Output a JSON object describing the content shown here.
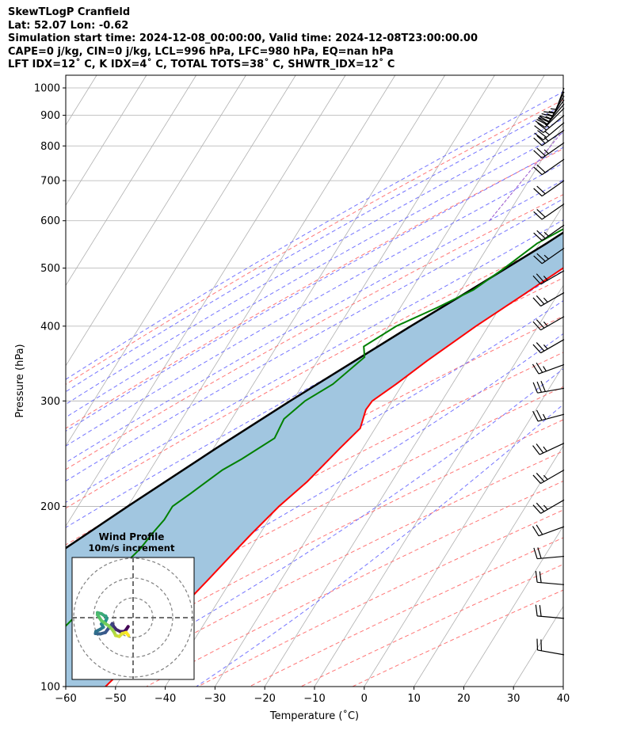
{
  "title_lines": [
    "SkewTLogP Cranfield",
    "Lat: 52.07   Lon: -0.62",
    "Simulation start time: 2024-12-08_00:00:00, Valid time: 2024-12-08T23:00:00.00",
    "CAPE=0 j/kg, CIN=0 j/kg, LCL=996 hPa, LFC=980 hPa, EQ=nan hPa",
    "LFT IDX=12˚ C, K IDX=4˚ C, TOTAL TOTS=38˚ C, SHWTR_IDX=12˚ C"
  ],
  "chart_data": {
    "type": "line",
    "subtype": "skew-t log-p",
    "xlabel": "Temperature (˚C)",
    "ylabel": "Pressure (hPa)",
    "xlim": [
      -60,
      40
    ],
    "ylim": [
      1050,
      100
    ],
    "y_scale": "log",
    "x_ticks": [
      -60,
      -50,
      -40,
      -30,
      -20,
      -10,
      0,
      10,
      20,
      30,
      40
    ],
    "x_tick_labels": [
      "−60",
      "−50",
      "−40",
      "−30",
      "−20",
      "−10",
      "0",
      "10",
      "20",
      "30",
      "40"
    ],
    "y_ticks": [
      1000,
      900,
      800,
      700,
      600,
      500,
      400,
      300,
      200,
      100
    ],
    "y_tick_labels": [
      "1000",
      "900",
      "800",
      "700",
      "600",
      "500",
      "400",
      "300",
      "200",
      "100"
    ],
    "grid": true,
    "colors": {
      "temperature": "#ff0000",
      "dewpoint": "#008000",
      "parcel": "#000000",
      "cape_fill": "#a1c6e0",
      "dry_adiabat": "#ff6666",
      "moist_adiabat": "#6666ff",
      "mixing_ratio": "#9955cc",
      "isotherm": "#b0b0b0",
      "grid": "#b0b0b0"
    },
    "series": [
      {
        "key": "temperature",
        "points": [
          {
            "p": 1010,
            "t": 7.0
          },
          {
            "p": 950,
            "t": 5.0
          },
          {
            "p": 900,
            "t": 3.5
          },
          {
            "p": 850,
            "t": 2.2
          },
          {
            "p": 800,
            "t": 1.2
          },
          {
            "p": 750,
            "t": 1.6
          },
          {
            "p": 700,
            "t": -0.3
          },
          {
            "p": 650,
            "t": -2.5
          },
          {
            "p": 600,
            "t": -5.2
          },
          {
            "p": 550,
            "t": -8.3
          },
          {
            "p": 500,
            "t": -12.2
          },
          {
            "p": 450,
            "t": -17.0
          },
          {
            "p": 400,
            "t": -22.5
          },
          {
            "p": 350,
            "t": -28.0
          },
          {
            "p": 320,
            "t": -31.3
          },
          {
            "p": 300,
            "t": -34.0
          },
          {
            "p": 290,
            "t": -34.2
          },
          {
            "p": 270,
            "t": -33.0
          },
          {
            "p": 250,
            "t": -34.6
          },
          {
            "p": 220,
            "t": -37.0
          },
          {
            "p": 200,
            "t": -39.6
          },
          {
            "p": 180,
            "t": -41.7
          },
          {
            "p": 170,
            "t": -42.7
          },
          {
            "p": 160,
            "t": -43.7
          },
          {
            "p": 150,
            "t": -44.8
          },
          {
            "p": 140,
            "t": -46.0
          },
          {
            "p": 130,
            "t": -46.3
          },
          {
            "p": 120,
            "t": -48.0
          },
          {
            "p": 110,
            "t": -50.0
          },
          {
            "p": 100,
            "t": -52.0
          }
        ]
      },
      {
        "key": "dewpoint",
        "points": [
          {
            "p": 1010,
            "t": 6.2
          },
          {
            "p": 950,
            "t": 4.8
          },
          {
            "p": 900,
            "t": 3.3
          },
          {
            "p": 850,
            "t": 1.7
          },
          {
            "p": 800,
            "t": -0.5
          },
          {
            "p": 760,
            "t": -2.6
          },
          {
            "p": 730,
            "t": -6.5
          },
          {
            "p": 700,
            "t": -13.0
          },
          {
            "p": 650,
            "t": -17.0
          },
          {
            "p": 620,
            "t": -15.2
          },
          {
            "p": 600,
            "t": -15.0
          },
          {
            "p": 550,
            "t": -20.5
          },
          {
            "p": 500,
            "t": -24.0
          },
          {
            "p": 460,
            "t": -27.5
          },
          {
            "p": 430,
            "t": -32.5
          },
          {
            "p": 400,
            "t": -38.5
          },
          {
            "p": 370,
            "t": -42.5
          },
          {
            "p": 355,
            "t": -41.0
          },
          {
            "p": 320,
            "t": -44.0
          },
          {
            "p": 300,
            "t": -47.5
          },
          {
            "p": 280,
            "t": -49.5
          },
          {
            "p": 260,
            "t": -49.0
          },
          {
            "p": 240,
            "t": -53.0
          },
          {
            "p": 230,
            "t": -55.5
          },
          {
            "p": 210,
            "t": -59.0
          },
          {
            "p": 200,
            "t": -61.0
          },
          {
            "p": 190,
            "t": -61.0
          },
          {
            "p": 180,
            "t": -61.7
          },
          {
            "p": 170,
            "t": -62.2
          },
          {
            "p": 160,
            "t": -63.5
          },
          {
            "p": 150,
            "t": -64.5
          },
          {
            "p": 140,
            "t": -65.8
          },
          {
            "p": 130,
            "t": -67.0
          },
          {
            "p": 120,
            "t": -68.5
          },
          {
            "p": 110,
            "t": -70.0
          },
          {
            "p": 100,
            "t": -71.5
          }
        ]
      },
      {
        "key": "parcel",
        "points": [
          {
            "p": 1010,
            "t": 7.0
          },
          {
            "p": 996,
            "t": 6.2
          },
          {
            "p": 950,
            "t": 4.7
          },
          {
            "p": 900,
            "t": 2.8
          },
          {
            "p": 850,
            "t": 0.7
          },
          {
            "p": 800,
            "t": -1.6
          },
          {
            "p": 750,
            "t": -4.2
          },
          {
            "p": 700,
            "t": -7.2
          },
          {
            "p": 650,
            "t": -10.6
          },
          {
            "p": 600,
            "t": -14.4
          },
          {
            "p": 550,
            "t": -18.6
          },
          {
            "p": 500,
            "t": -23.6
          },
          {
            "p": 450,
            "t": -29.2
          },
          {
            "p": 400,
            "t": -35.6
          },
          {
            "p": 350,
            "t": -42.5
          },
          {
            "p": 300,
            "t": -50.5
          },
          {
            "p": 250,
            "t": -59.5
          },
          {
            "p": 200,
            "t": -70.0
          },
          {
            "p": 150,
            "t": -83.0
          },
          {
            "p": 120,
            "t": -93.0
          },
          {
            "p": 100,
            "t": -100.0
          }
        ]
      }
    ],
    "wind_barbs": {
      "units": "knots",
      "levels": [
        {
          "p": 1000,
          "speed_kt": 15,
          "dir_deg": 200
        },
        {
          "p": 985,
          "speed_kt": 15,
          "dir_deg": 205
        },
        {
          "p": 970,
          "speed_kt": 15,
          "dir_deg": 210
        },
        {
          "p": 955,
          "speed_kt": 15,
          "dir_deg": 215
        },
        {
          "p": 940,
          "speed_kt": 20,
          "dir_deg": 220
        },
        {
          "p": 925,
          "speed_kt": 20,
          "dir_deg": 225
        },
        {
          "p": 900,
          "speed_kt": 25,
          "dir_deg": 230
        },
        {
          "p": 875,
          "speed_kt": 25,
          "dir_deg": 230
        },
        {
          "p": 850,
          "speed_kt": 25,
          "dir_deg": 235
        },
        {
          "p": 810,
          "speed_kt": 25,
          "dir_deg": 235
        },
        {
          "p": 760,
          "speed_kt": 20,
          "dir_deg": 235
        },
        {
          "p": 700,
          "speed_kt": 20,
          "dir_deg": 235
        },
        {
          "p": 640,
          "speed_kt": 20,
          "dir_deg": 235
        },
        {
          "p": 590,
          "speed_kt": 25,
          "dir_deg": 235
        },
        {
          "p": 540,
          "speed_kt": 25,
          "dir_deg": 235
        },
        {
          "p": 495,
          "speed_kt": 25,
          "dir_deg": 240
        },
        {
          "p": 455,
          "speed_kt": 25,
          "dir_deg": 240
        },
        {
          "p": 415,
          "speed_kt": 25,
          "dir_deg": 240
        },
        {
          "p": 380,
          "speed_kt": 25,
          "dir_deg": 240
        },
        {
          "p": 345,
          "speed_kt": 25,
          "dir_deg": 250
        },
        {
          "p": 315,
          "speed_kt": 30,
          "dir_deg": 260
        },
        {
          "p": 285,
          "speed_kt": 25,
          "dir_deg": 255
        },
        {
          "p": 255,
          "speed_kt": 25,
          "dir_deg": 245
        },
        {
          "p": 230,
          "speed_kt": 25,
          "dir_deg": 240
        },
        {
          "p": 205,
          "speed_kt": 25,
          "dir_deg": 240
        },
        {
          "p": 185,
          "speed_kt": 20,
          "dir_deg": 250
        },
        {
          "p": 165,
          "speed_kt": 20,
          "dir_deg": 265
        },
        {
          "p": 148,
          "speed_kt": 20,
          "dir_deg": 275
        },
        {
          "p": 130,
          "speed_kt": 20,
          "dir_deg": 275
        },
        {
          "p": 113,
          "speed_kt": 20,
          "dir_deg": 280
        }
      ]
    },
    "hodograph": {
      "title_line1": "Wind Profile",
      "title_line2": "10m/s increment",
      "ring_increment_ms": 10,
      "color_map": "viridis",
      "points": [
        {
          "u": -2.5,
          "v": -4.5
        },
        {
          "u": -3.5,
          "v": -6.0
        },
        {
          "u": -4.5,
          "v": -7.0
        },
        {
          "u": -6.5,
          "v": -7.0
        },
        {
          "u": -8.5,
          "v": -6.0
        },
        {
          "u": -9.8,
          "v": -4.5
        },
        {
          "u": -10.5,
          "v": -3.0
        },
        {
          "u": -11.0,
          "v": -3.8
        },
        {
          "u": -12.5,
          "v": -5.5
        },
        {
          "u": -14.0,
          "v": -7.5
        },
        {
          "u": -16.5,
          "v": -8.2
        },
        {
          "u": -19.0,
          "v": -8.0
        },
        {
          "u": -18.8,
          "v": -7.0
        },
        {
          "u": -16.5,
          "v": -5.8
        },
        {
          "u": -15.0,
          "v": -4.8
        },
        {
          "u": -16.0,
          "v": -3.2
        },
        {
          "u": -14.0,
          "v": -2.0
        },
        {
          "u": -13.3,
          "v": -0.5
        },
        {
          "u": -13.8,
          "v": 0.8
        },
        {
          "u": -14.5,
          "v": 1.0
        },
        {
          "u": -16.0,
          "v": 2.0
        },
        {
          "u": -18.0,
          "v": 2.5
        },
        {
          "u": -18.0,
          "v": 1.5
        },
        {
          "u": -17.0,
          "v": 0.0
        },
        {
          "u": -16.0,
          "v": -1.5
        },
        {
          "u": -14.0,
          "v": -3.0
        },
        {
          "u": -12.5,
          "v": -4.0
        },
        {
          "u": -10.5,
          "v": -6.0
        },
        {
          "u": -9.5,
          "v": -7.5
        },
        {
          "u": -8.8,
          "v": -9.0
        },
        {
          "u": -7.0,
          "v": -9.5
        },
        {
          "u": -5.5,
          "v": -8.0
        },
        {
          "u": -3.5,
          "v": -7.5
        },
        {
          "u": -2.3,
          "v": -9.0
        }
      ]
    }
  }
}
